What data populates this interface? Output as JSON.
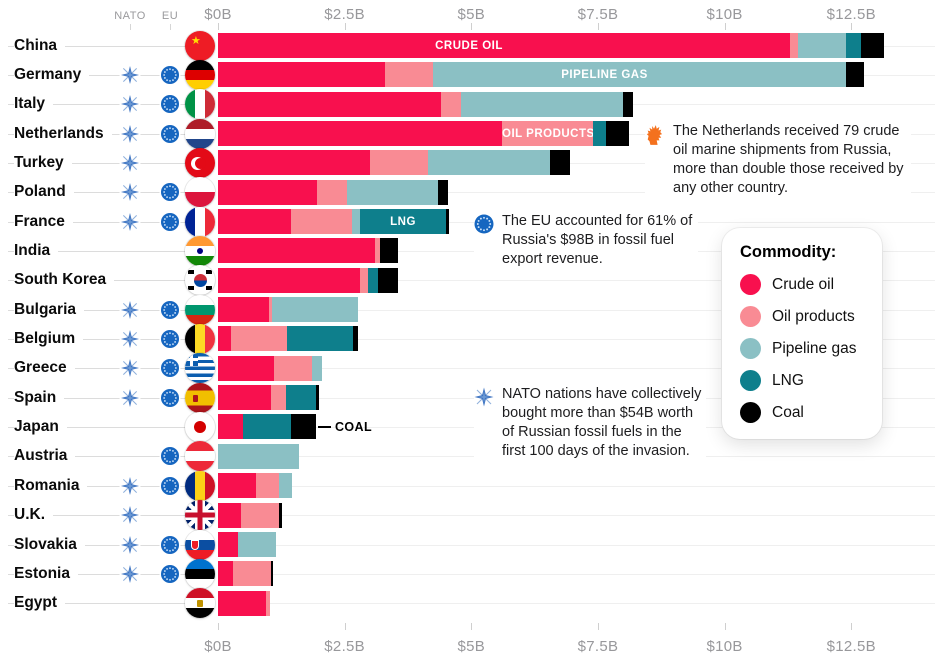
{
  "header": {
    "nato": "NATO",
    "eu": "EU"
  },
  "chart_data": {
    "type": "bar",
    "stacked": true,
    "orientation": "horizontal",
    "unit": "billion USD",
    "axis": {
      "ticks": [
        "$0B",
        "$2.5B",
        "$5B",
        "$7.5B",
        "$10B",
        "$12.5B"
      ],
      "values": [
        0,
        2.5,
        5,
        7.5,
        10,
        12.5
      ],
      "xlim": [
        0,
        14.05
      ],
      "shown_top_and_bottom": true
    },
    "commodities": [
      {
        "key": "crude_oil",
        "label": "Crude oil",
        "color": "#F8104E"
      },
      {
        "key": "oil_products",
        "label": "Oil products",
        "color": "#F98B94"
      },
      {
        "key": "pipeline_gas",
        "label": "Pipeline gas",
        "color": "#8BC0C4"
      },
      {
        "key": "lng",
        "label": "LNG",
        "color": "#0E7F8C"
      },
      {
        "key": "coal",
        "label": "Coal",
        "color": "#000000"
      }
    ],
    "rows": [
      {
        "country": "China",
        "nato": false,
        "eu": false,
        "flag": "china",
        "values": {
          "crude_oil": 11.3,
          "oil_products": 0.15,
          "pipeline_gas": 0.95,
          "lng": 0.3,
          "coal": 0.45
        },
        "segment_label": {
          "commodity": "crude_oil",
          "text": "CRUDE OIL"
        }
      },
      {
        "country": "Germany",
        "nato": true,
        "eu": true,
        "flag": "germany",
        "values": {
          "crude_oil": 3.3,
          "oil_products": 0.95,
          "pipeline_gas": 8.15,
          "coal": 0.35
        },
        "segment_label": {
          "commodity": "pipeline_gas",
          "text": "PIPELINE GAS"
        }
      },
      {
        "country": "Italy",
        "nato": true,
        "eu": true,
        "flag": "italy",
        "values": {
          "crude_oil": 4.4,
          "oil_products": 0.4,
          "pipeline_gas": 3.2,
          "coal": 0.2
        }
      },
      {
        "country": "Netherlands",
        "nato": true,
        "eu": true,
        "flag": "netherlands",
        "values": {
          "crude_oil": 5.6,
          "oil_products": 1.8,
          "lng": 0.25,
          "coal": 0.45
        },
        "segment_label": {
          "commodity": "oil_products",
          "text": "OIL PRODUCTS"
        }
      },
      {
        "country": "Turkey",
        "nato": true,
        "eu": false,
        "flag": "turkey",
        "values": {
          "crude_oil": 3.0,
          "oil_products": 1.15,
          "pipeline_gas": 2.4,
          "coal": 0.4
        }
      },
      {
        "country": "Poland",
        "nato": true,
        "eu": true,
        "flag": "poland",
        "values": {
          "crude_oil": 1.95,
          "oil_products": 0.6,
          "pipeline_gas": 1.8,
          "coal": 0.2
        }
      },
      {
        "country": "France",
        "nato": true,
        "eu": true,
        "flag": "france",
        "values": {
          "crude_oil": 1.45,
          "oil_products": 1.2,
          "pipeline_gas": 0.15,
          "lng": 1.7,
          "coal": 0.05
        },
        "segment_label": {
          "commodity": "lng",
          "text": "LNG"
        }
      },
      {
        "country": "India",
        "nato": false,
        "eu": false,
        "flag": "india",
        "values": {
          "crude_oil": 3.1,
          "oil_products": 0.1,
          "coal": 0.35
        }
      },
      {
        "country": "South Korea",
        "nato": false,
        "eu": false,
        "flag": "south-korea",
        "values": {
          "crude_oil": 2.8,
          "oil_products": 0.15,
          "lng": 0.2,
          "coal": 0.4
        }
      },
      {
        "country": "Bulgaria",
        "nato": true,
        "eu": true,
        "flag": "bulgaria",
        "values": {
          "crude_oil": 1.0,
          "oil_products": 0.05,
          "pipeline_gas": 1.7
        }
      },
      {
        "country": "Belgium",
        "nato": true,
        "eu": true,
        "flag": "belgium",
        "values": {
          "crude_oil": 0.25,
          "oil_products": 1.1,
          "lng": 1.3,
          "coal": 0.1
        }
      },
      {
        "country": "Greece",
        "nato": true,
        "eu": true,
        "flag": "greece",
        "values": {
          "crude_oil": 1.1,
          "oil_products": 0.75,
          "pipeline_gas": 0.2
        }
      },
      {
        "country": "Spain",
        "nato": true,
        "eu": true,
        "flag": "spain",
        "values": {
          "crude_oil": 1.05,
          "oil_products": 0.3,
          "lng": 0.6,
          "coal": 0.05
        }
      },
      {
        "country": "Japan",
        "nato": false,
        "eu": false,
        "flag": "japan",
        "values": {
          "crude_oil": 0.5,
          "lng": 0.95,
          "coal": 0.5
        },
        "external_label": {
          "text": "COAL"
        }
      },
      {
        "country": "Austria",
        "nato": false,
        "eu": true,
        "flag": "austria",
        "values": {
          "pipeline_gas": 1.6
        }
      },
      {
        "country": "Romania",
        "nato": true,
        "eu": true,
        "flag": "romania",
        "values": {
          "crude_oil": 0.75,
          "oil_products": 0.45,
          "pipeline_gas": 0.25
        }
      },
      {
        "country": "U.K.",
        "nato": true,
        "eu": false,
        "flag": "uk",
        "values": {
          "crude_oil": 0.45,
          "oil_products": 0.75,
          "coal": 0.05
        }
      },
      {
        "country": "Slovakia",
        "nato": true,
        "eu": true,
        "flag": "slovakia",
        "values": {
          "crude_oil": 0.4,
          "pipeline_gas": 0.75
        }
      },
      {
        "country": "Estonia",
        "nato": true,
        "eu": true,
        "flag": "estonia",
        "values": {
          "crude_oil": 0.3,
          "oil_products": 0.75,
          "coal": 0.04
        }
      },
      {
        "country": "Egypt",
        "nato": false,
        "eu": false,
        "flag": "egypt",
        "values": {
          "crude_oil": 0.95,
          "oil_products": 0.08
        }
      }
    ]
  },
  "legend": {
    "title": "Commodity:"
  },
  "annotations": [
    {
      "id": "netherlands-note",
      "icon": "dutch-lion-icon",
      "text": "The Netherlands received 79 crude oil marine shipments from Russia, more than double those received by any other country."
    },
    {
      "id": "eu-note",
      "icon": "eu-icon",
      "text": "The EU accounted for 61% of Russia's $98B in fossil fuel export revenue."
    },
    {
      "id": "nato-note",
      "icon": "nato-icon",
      "text": "NATO nations have collectively bought more than $54B worth of Russian fossil fuels in the first 100 days of the invasion."
    }
  ]
}
